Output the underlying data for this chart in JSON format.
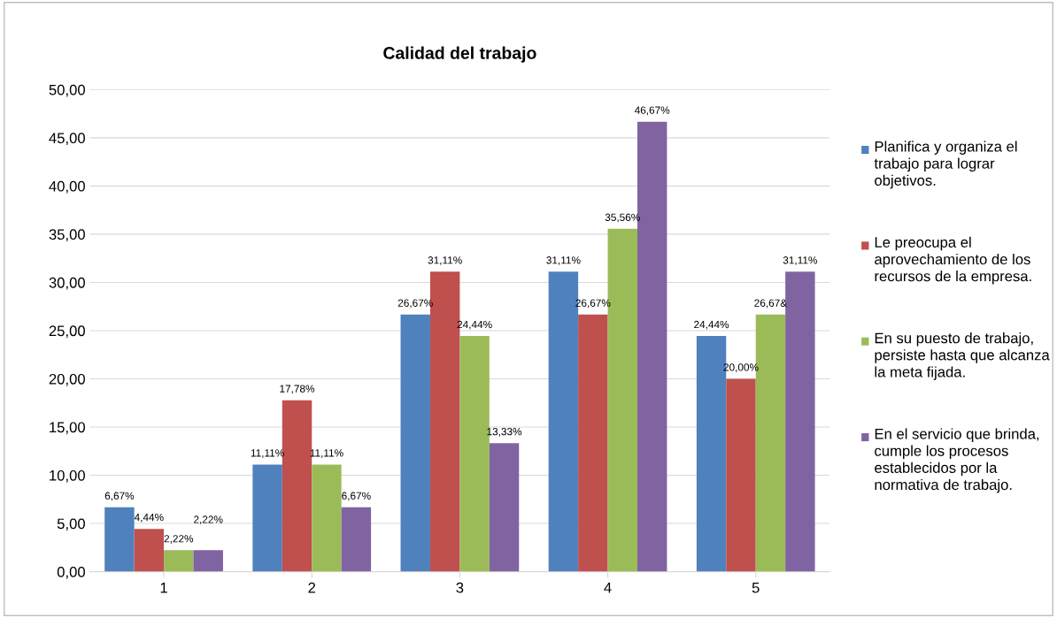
{
  "chart_data": {
    "type": "bar",
    "title": "Calidad del trabajo",
    "categories": [
      "1",
      "2",
      "3",
      "4",
      "5"
    ],
    "series": [
      {
        "name": "Planifica y organiza el trabajo para lograr objetivos.",
        "color": "#4f81bd",
        "values": [
          6.67,
          11.11,
          26.67,
          31.11,
          24.44
        ],
        "value_labels": [
          "6,67%",
          "11,11%",
          "26,67%",
          "31,11%",
          "24,44%"
        ]
      },
      {
        "name": "Le preocupa el aprovechamiento de los recursos de la empresa.",
        "color": "#c0504d",
        "values": [
          4.44,
          17.78,
          31.11,
          26.67,
          20.0
        ],
        "value_labels": [
          "4,44%",
          "17,78%",
          "31,11%",
          "26,67%",
          "20,00%"
        ]
      },
      {
        "name": "En su puesto de trabajo, persiste hasta que alcanza la meta fijada.",
        "color": "#9bbb59",
        "values": [
          2.22,
          11.11,
          24.44,
          35.56,
          26.67
        ],
        "value_labels": [
          "2,22%",
          "11,11%",
          "24,44%",
          "35,56%",
          "26,67&"
        ]
      },
      {
        "name": "En el servicio que brinda, cumple los procesos establecidos por la normativa de trabajo.",
        "color": "#8064a2",
        "values": [
          2.22,
          6.67,
          13.33,
          46.67,
          31.11
        ],
        "value_labels": [
          "2,22%",
          "6,67%",
          "13,33%",
          "46,67%",
          "31,11%"
        ]
      }
    ],
    "ylim": [
      0,
      50
    ],
    "yticks": [
      {
        "value": 0,
        "label": "0,00"
      },
      {
        "value": 5,
        "label": "5,00"
      },
      {
        "value": 10,
        "label": "10,00"
      },
      {
        "value": 15,
        "label": "15,00"
      },
      {
        "value": 20,
        "label": "20,00"
      },
      {
        "value": 25,
        "label": "25,00"
      },
      {
        "value": 30,
        "label": "30,00"
      },
      {
        "value": 35,
        "label": "35,00"
      },
      {
        "value": 40,
        "label": "40,00"
      },
      {
        "value": 45,
        "label": "45,00"
      },
      {
        "value": 50,
        "label": "50,00"
      }
    ],
    "grid": "y",
    "legend": "right"
  }
}
